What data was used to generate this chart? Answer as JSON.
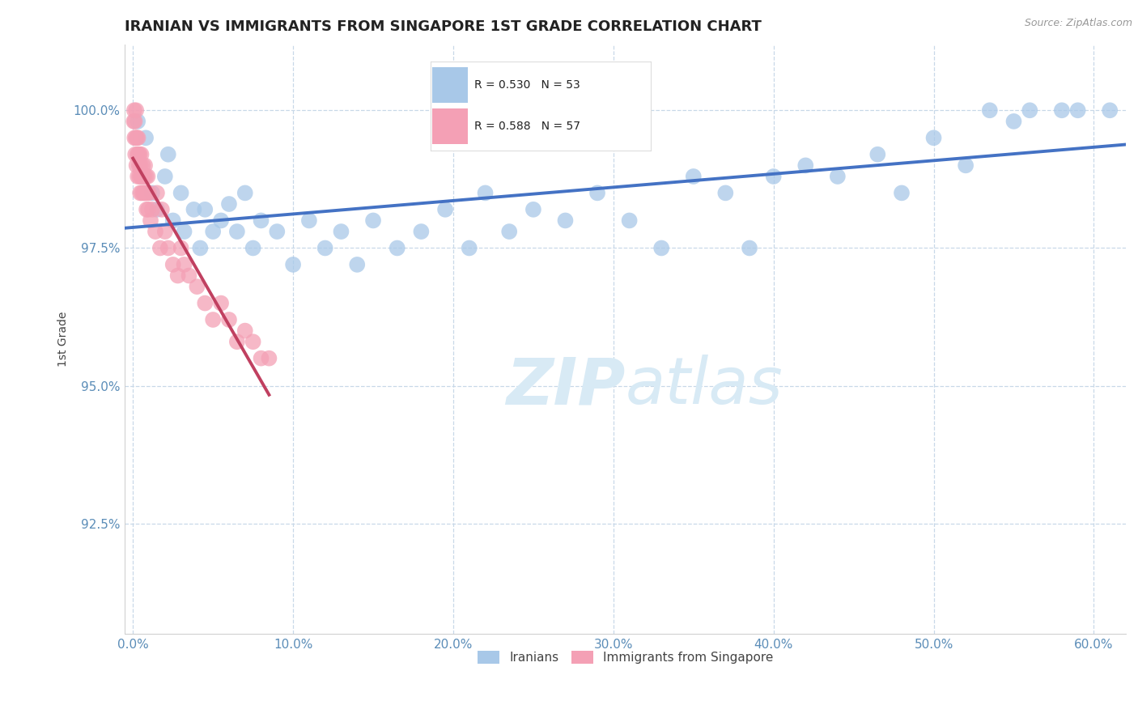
{
  "title": "IRANIAN VS IMMIGRANTS FROM SINGAPORE 1ST GRADE CORRELATION CHART",
  "source_text": "Source: ZipAtlas.com",
  "xlabel": "",
  "ylabel": "1st Grade",
  "xlim": [
    -0.5,
    62.0
  ],
  "ylim": [
    90.5,
    101.2
  ],
  "xticks": [
    0.0,
    10.0,
    20.0,
    30.0,
    40.0,
    50.0,
    60.0
  ],
  "yticks": [
    92.5,
    95.0,
    97.5,
    100.0
  ],
  "xtick_labels": [
    "0.0%",
    "10.0%",
    "20.0%",
    "30.0%",
    "40.0%",
    "50.0%",
    "60.0%"
  ],
  "ytick_labels": [
    "92.5%",
    "95.0%",
    "97.5%",
    "100.0%"
  ],
  "blue_R": 0.53,
  "blue_N": 53,
  "pink_R": 0.588,
  "pink_N": 57,
  "blue_color": "#A8C8E8",
  "pink_color": "#F4A0B5",
  "blue_line_color": "#4472C4",
  "pink_line_color": "#C04060",
  "watermark_zip": "ZIP",
  "watermark_atlas": "atlas",
  "watermark_color": "#D8EAF5",
  "legend_blue_label": "Iranians",
  "legend_pink_label": "Immigrants from Singapore",
  "title_color": "#222222",
  "axis_color": "#5B8DB8",
  "tick_color": "#5B8DB8",
  "grid_color": "#C8D8E8",
  "background_color": "#FFFFFF",
  "blue_x": [
    0.3,
    0.8,
    1.2,
    1.5,
    2.0,
    2.2,
    2.5,
    3.0,
    3.2,
    3.8,
    4.2,
    4.5,
    5.0,
    5.5,
    6.0,
    6.5,
    7.0,
    7.5,
    8.0,
    9.0,
    10.0,
    11.0,
    12.0,
    13.0,
    14.0,
    15.0,
    16.5,
    18.0,
    19.5,
    21.0,
    22.0,
    23.5,
    25.0,
    27.0,
    29.0,
    31.0,
    33.0,
    35.0,
    37.0,
    38.5,
    40.0,
    42.0,
    44.0,
    46.5,
    48.0,
    50.0,
    52.0,
    53.5,
    55.0,
    56.0,
    58.0,
    59.0,
    61.0
  ],
  "blue_y": [
    99.8,
    99.5,
    98.5,
    98.2,
    98.8,
    99.2,
    98.0,
    98.5,
    97.8,
    98.2,
    97.5,
    98.2,
    97.8,
    98.0,
    98.3,
    97.8,
    98.5,
    97.5,
    98.0,
    97.8,
    97.2,
    98.0,
    97.5,
    97.8,
    97.2,
    98.0,
    97.5,
    97.8,
    98.2,
    97.5,
    98.5,
    97.8,
    98.2,
    98.0,
    98.5,
    98.0,
    97.5,
    98.8,
    98.5,
    97.5,
    98.8,
    99.0,
    98.8,
    99.2,
    98.5,
    99.5,
    99.0,
    100.0,
    99.8,
    100.0,
    100.0,
    100.0,
    100.0
  ],
  "pink_x": [
    0.05,
    0.08,
    0.1,
    0.12,
    0.15,
    0.18,
    0.2,
    0.22,
    0.25,
    0.28,
    0.3,
    0.32,
    0.35,
    0.38,
    0.4,
    0.42,
    0.45,
    0.48,
    0.5,
    0.52,
    0.55,
    0.6,
    0.62,
    0.65,
    0.7,
    0.72,
    0.75,
    0.8,
    0.82,
    0.85,
    0.9,
    0.92,
    0.95,
    1.0,
    1.1,
    1.2,
    1.4,
    1.5,
    1.7,
    1.8,
    2.0,
    2.2,
    2.5,
    2.8,
    3.0,
    3.2,
    3.5,
    4.0,
    4.5,
    5.0,
    5.5,
    6.0,
    6.5,
    7.0,
    7.5,
    8.0,
    8.5
  ],
  "pink_y": [
    99.8,
    100.0,
    99.5,
    99.8,
    99.2,
    99.5,
    100.0,
    99.0,
    99.5,
    99.2,
    98.8,
    99.5,
    99.2,
    99.0,
    98.8,
    99.2,
    98.5,
    99.0,
    98.8,
    99.2,
    98.5,
    98.8,
    99.0,
    98.5,
    98.8,
    98.5,
    99.0,
    98.5,
    98.8,
    98.2,
    98.5,
    98.8,
    98.2,
    98.5,
    98.0,
    98.2,
    97.8,
    98.5,
    97.5,
    98.2,
    97.8,
    97.5,
    97.2,
    97.0,
    97.5,
    97.2,
    97.0,
    96.8,
    96.5,
    96.2,
    96.5,
    96.2,
    95.8,
    96.0,
    95.8,
    95.5,
    95.5
  ]
}
